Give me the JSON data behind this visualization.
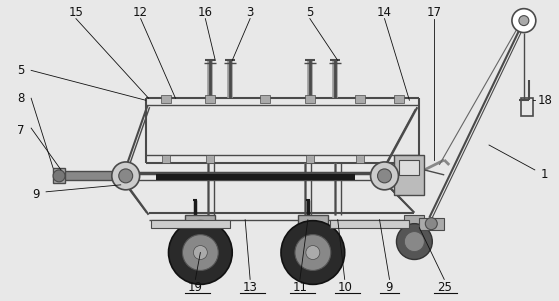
{
  "bg_color": "#e8e8e8",
  "lc": "#4a4a4a",
  "dc": "#1a1a1a",
  "fig_w": 5.59,
  "fig_h": 3.01,
  "ann_color": "#111111"
}
